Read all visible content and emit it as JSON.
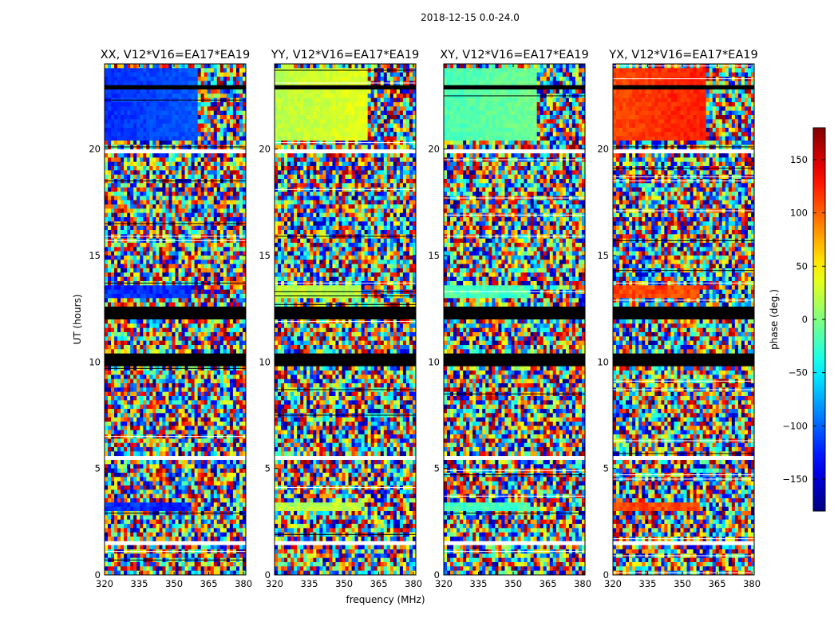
{
  "chart_data": {
    "type": "heatmap",
    "suptitle": "2018-12-15 0.0-24.0",
    "xlabel": "frequency (MHz)",
    "ylabel": "UT (hours)",
    "xlim": [
      320,
      381
    ],
    "ylim": [
      0,
      24
    ],
    "xticks": [
      320,
      335,
      350,
      365,
      380
    ],
    "yticks": [
      0,
      5,
      10,
      15,
      20
    ],
    "panels": [
      {
        "title": "XX, V12*V16=EA17*EA19",
        "clean_phase": -120
      },
      {
        "title": "YY, V12*V16=EA17*EA19",
        "clean_phase": 20
      },
      {
        "title": "XY, V12*V16=EA17*EA19",
        "clean_phase": -20
      },
      {
        "title": "YX, V12*V16=EA17*EA19",
        "clean_phase": 110
      }
    ],
    "colorbar": {
      "label": "phase (deg.)",
      "range": [
        -180,
        180
      ],
      "ticks": [
        150,
        100,
        50,
        0,
        -50,
        -100,
        -150
      ],
      "tick_labels": [
        "150",
        "100",
        "50",
        "0",
        "−50",
        "−100",
        "−150"
      ],
      "colormap": "jet"
    },
    "flagged_bands_ut": [
      [
        11.95,
        12.55
      ],
      [
        22.75,
        23.0
      ],
      [
        10.1,
        10.3
      ],
      [
        9.9,
        9.95
      ]
    ],
    "coherent_bands_ut": [
      [
        20.5,
        23.8
      ]
    ],
    "partial_coherent_bands_ut": [
      [
        13.05,
        13.55
      ],
      [
        3.0,
        3.35
      ],
      [
        5.9,
        6.1
      ]
    ],
    "blank_bands_ut": [
      [
        19.85,
        19.95
      ],
      [
        1.45,
        1.5
      ],
      [
        17.2,
        17.25
      ],
      [
        15.95,
        16.0
      ],
      [
        9.35,
        9.4
      ],
      [
        2.75,
        2.8
      ],
      [
        12.8,
        12.85
      ],
      [
        5.5,
        5.55
      ]
    ]
  }
}
